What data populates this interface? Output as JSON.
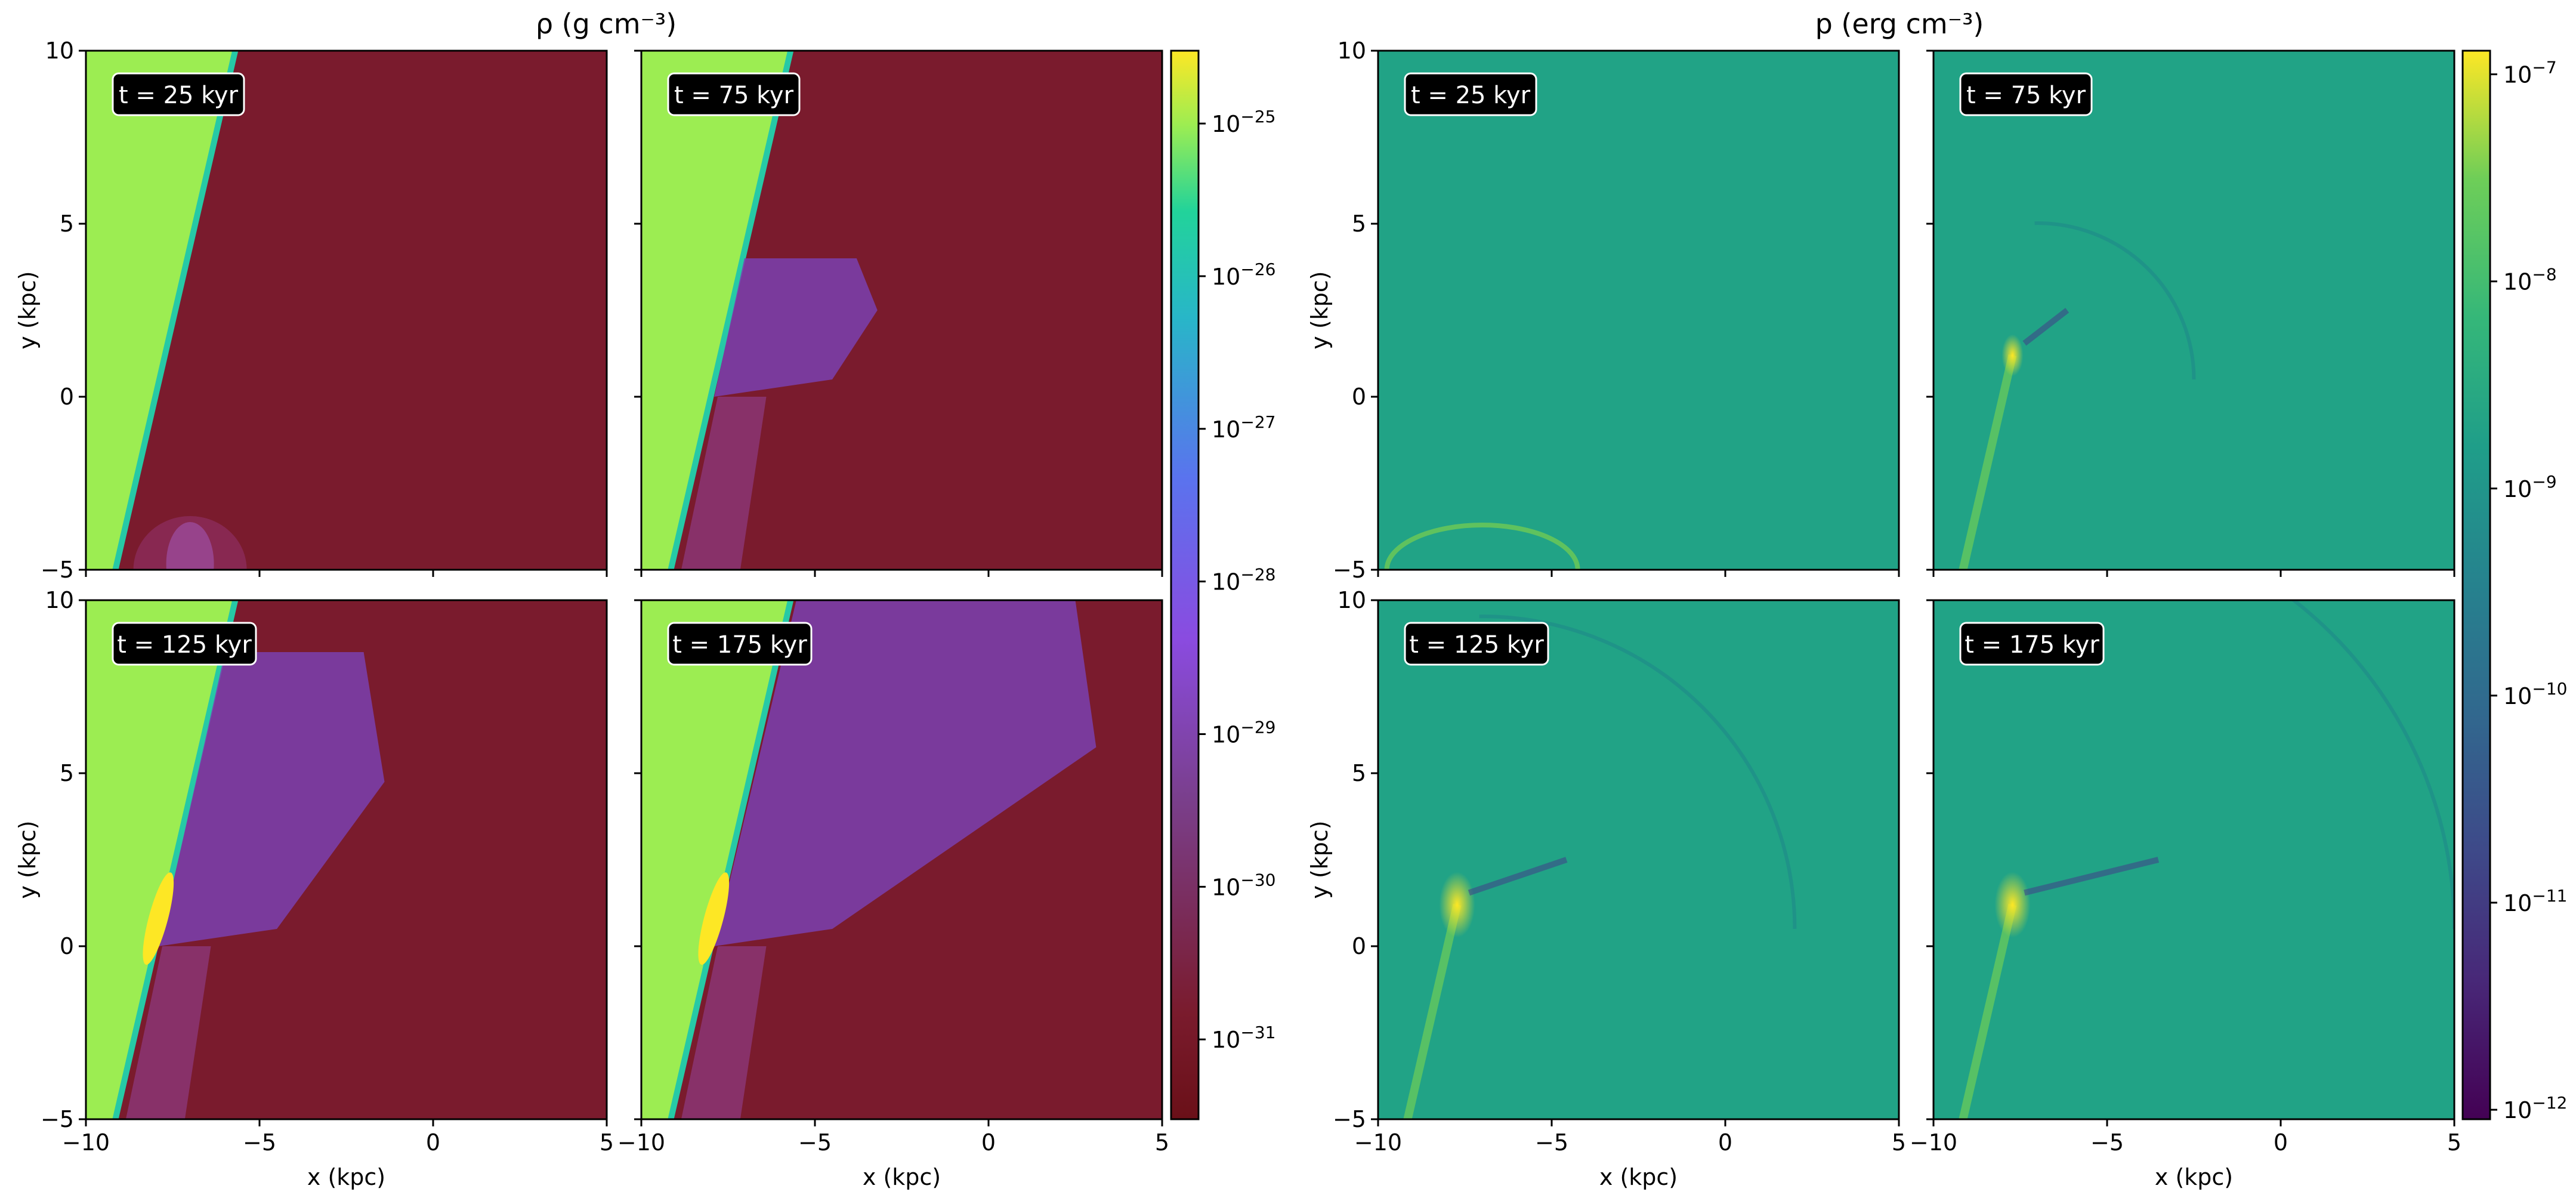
{
  "colors": {
    "density_ambient": "#7a1b2d",
    "density_wedge": "#9ced52",
    "density_plume": "#7a3fb0",
    "pressure_ambient": "#21a386",
    "badge_bg": "#000000",
    "badge_text": "#ffffff"
  },
  "chart_data": [
    {
      "type": "heatmap",
      "title": "ρ (g cm⁻³)",
      "xlabel": "x (kpc)",
      "ylabel": "y (kpc)",
      "xlim": [
        -10,
        5
      ],
      "ylim": [
        -5,
        10
      ],
      "x_ticks": [
        "−10",
        "−5",
        "0",
        "5"
      ],
      "y_ticks": [
        "−5",
        "0",
        "5",
        "10"
      ],
      "panels": [
        {
          "time_label": "t = 25 kyr",
          "t_kyr": 25
        },
        {
          "time_label": "t = 75 kyr",
          "t_kyr": 75
        },
        {
          "time_label": "t = 125 kyr",
          "t_kyr": 125
        },
        {
          "time_label": "t = 175 kyr",
          "t_kyr": 175
        }
      ],
      "colorbar": {
        "scale": "log",
        "colormap": "plasma-like (dark red → purple → blue → teal → yellow)",
        "range": [
          3e-32,
          3e-25
        ],
        "ticks": [
          {
            "value": 1e-25,
            "label_base": "10",
            "label_exp": "−25"
          },
          {
            "value": 1e-26,
            "label_base": "10",
            "label_exp": "−26"
          },
          {
            "value": 1e-27,
            "label_base": "10",
            "label_exp": "−27"
          },
          {
            "value": 1e-28,
            "label_base": "10",
            "label_exp": "−28"
          },
          {
            "value": 1e-29,
            "label_base": "10",
            "label_exp": "−29"
          },
          {
            "value": 1e-30,
            "label_base": "10",
            "label_exp": "−30"
          },
          {
            "value": 1e-31,
            "label_base": "10",
            "label_exp": "−31"
          }
        ]
      }
    },
    {
      "type": "heatmap",
      "title": "p (erg cm⁻³)",
      "xlabel": "x (kpc)",
      "ylabel": "y (kpc)",
      "xlim": [
        -10,
        5
      ],
      "ylim": [
        -5,
        10
      ],
      "x_ticks": [
        "−10",
        "−5",
        "0",
        "5"
      ],
      "y_ticks": [
        "−5",
        "0",
        "5",
        "10"
      ],
      "panels": [
        {
          "time_label": "t = 25 kyr",
          "t_kyr": 25
        },
        {
          "time_label": "t = 75 kyr",
          "t_kyr": 75
        },
        {
          "time_label": "t = 125 kyr",
          "t_kyr": 125
        },
        {
          "time_label": "t = 175 kyr",
          "t_kyr": 175
        }
      ],
      "colorbar": {
        "scale": "log",
        "colormap": "viridis",
        "range": [
          9e-13,
          1.3e-07
        ],
        "ticks": [
          {
            "value": 1e-07,
            "label_base": "10",
            "label_exp": "−7"
          },
          {
            "value": 1e-08,
            "label_base": "10",
            "label_exp": "−8"
          },
          {
            "value": 1e-09,
            "label_base": "10",
            "label_exp": "−9"
          },
          {
            "value": 1e-10,
            "label_base": "10",
            "label_exp": "−10"
          },
          {
            "value": 1e-11,
            "label_base": "10",
            "label_exp": "−11"
          },
          {
            "value": 1e-12,
            "label_base": "10",
            "label_exp": "−12"
          }
        ]
      }
    }
  ]
}
